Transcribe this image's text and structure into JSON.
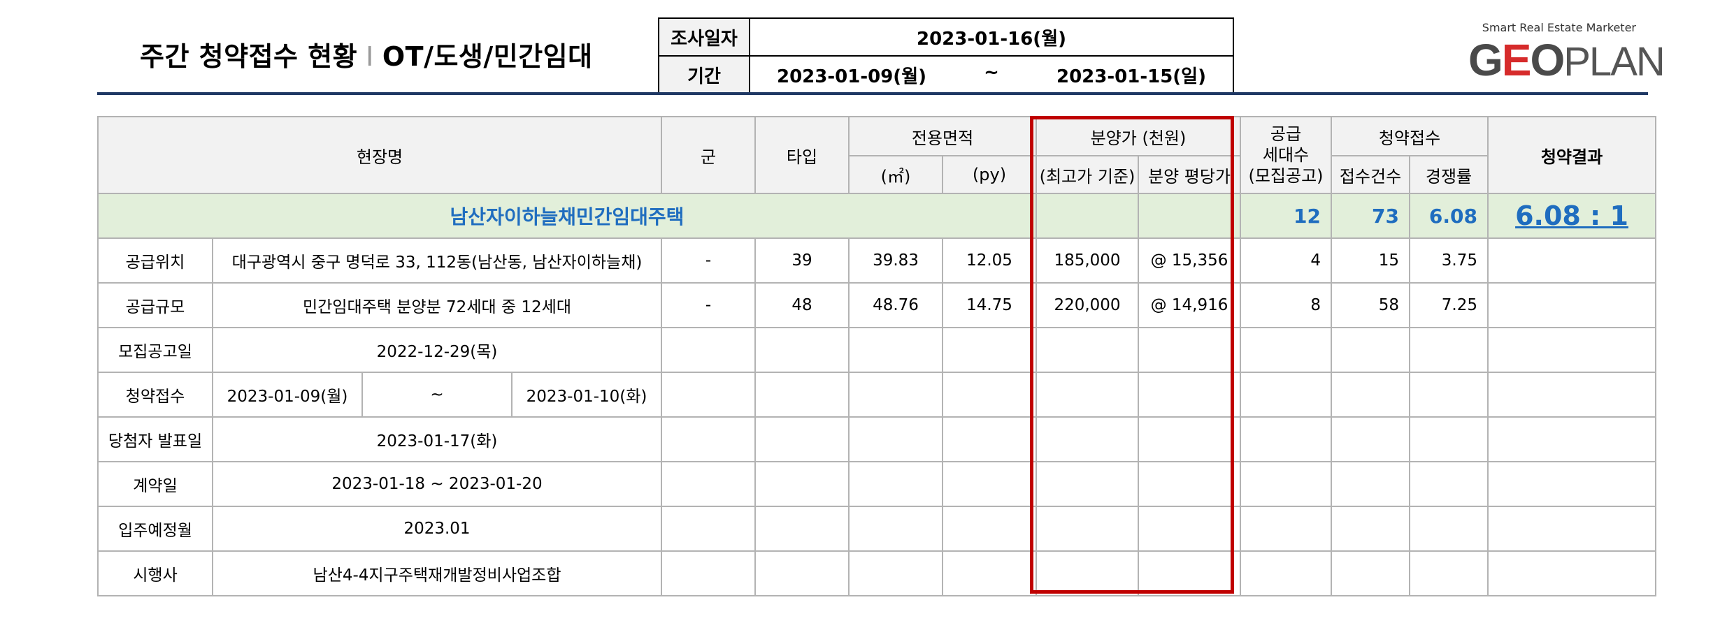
{
  "header": {
    "title_main": "주간 청약접수 현황",
    "title_sep": "I",
    "title_sub": "OT/도생/민간임대",
    "survey_label": "조사일자",
    "survey_date": "2023-01-16(월)",
    "period_label": "기간",
    "period_start": "2023-01-09(월)",
    "period_tilde": "~",
    "period_end": "2023-01-15(일)"
  },
  "brand": {
    "tagline": "Smart Real Estate Marketer",
    "logo_g": "G",
    "logo_e": "E",
    "logo_o": "O",
    "logo_plan": "PLAN"
  },
  "table_head": {
    "site_name": "현장명",
    "group": "군",
    "type": "타입",
    "area": "전용면적",
    "area_m2": "(㎡)",
    "area_py": "(py)",
    "price": "분양가 (천원)",
    "price_max": "(최고가 기준)",
    "price_pyeong": "분양 평당가",
    "supply_1": "공급",
    "supply_2": "세대수",
    "supply_3": "(모집공고)",
    "applications": "청약접수",
    "app_count": "접수건수",
    "competition": "경쟁률",
    "result": "청약결과"
  },
  "project": {
    "name": "남산자이하늘채민간임대주택",
    "total_supply": "12",
    "total_applications": "73",
    "total_competition": "6.08",
    "result": "6.08 : 1"
  },
  "info_rows": [
    {
      "label": "공급위치",
      "value": "대구광역시 중구 명덕로 33, 112동(남산동, 남산자이하늘채)"
    },
    {
      "label": "공급규모",
      "value": "민간임대주택 분양분 72세대 중 12세대"
    },
    {
      "label": "모집공고일",
      "value": "2022-12-29(목)"
    },
    {
      "label": "청약접수",
      "start": "2023-01-09(월)",
      "tilde": "~",
      "end": "2023-01-10(화)"
    },
    {
      "label": "당첨자 발표일",
      "value": "2023-01-17(화)"
    },
    {
      "label": "계약일",
      "value": "2023-01-18 ~ 2023-01-20"
    },
    {
      "label": "입주예정월",
      "value": "2023.01"
    },
    {
      "label": "시행사",
      "value": "남산4-4지구주택재개발정비사업조합"
    }
  ],
  "units": [
    {
      "group": "-",
      "type": "39",
      "m2": "39.83",
      "py": "12.05",
      "price": "185,000",
      "pyeong_price": "@ 15,356",
      "supply": "4",
      "applications": "15",
      "competition": "3.75"
    },
    {
      "group": "-",
      "type": "48",
      "m2": "48.76",
      "py": "14.75",
      "price": "220,000",
      "pyeong_price": "@ 14,916",
      "supply": "8",
      "applications": "58",
      "competition": "7.25"
    }
  ],
  "colors": {
    "highlight_box": "#c00000",
    "project_name": "#1f6dbf",
    "name_row_bg": "#e2efda",
    "title_rule": "#1f3864"
  }
}
